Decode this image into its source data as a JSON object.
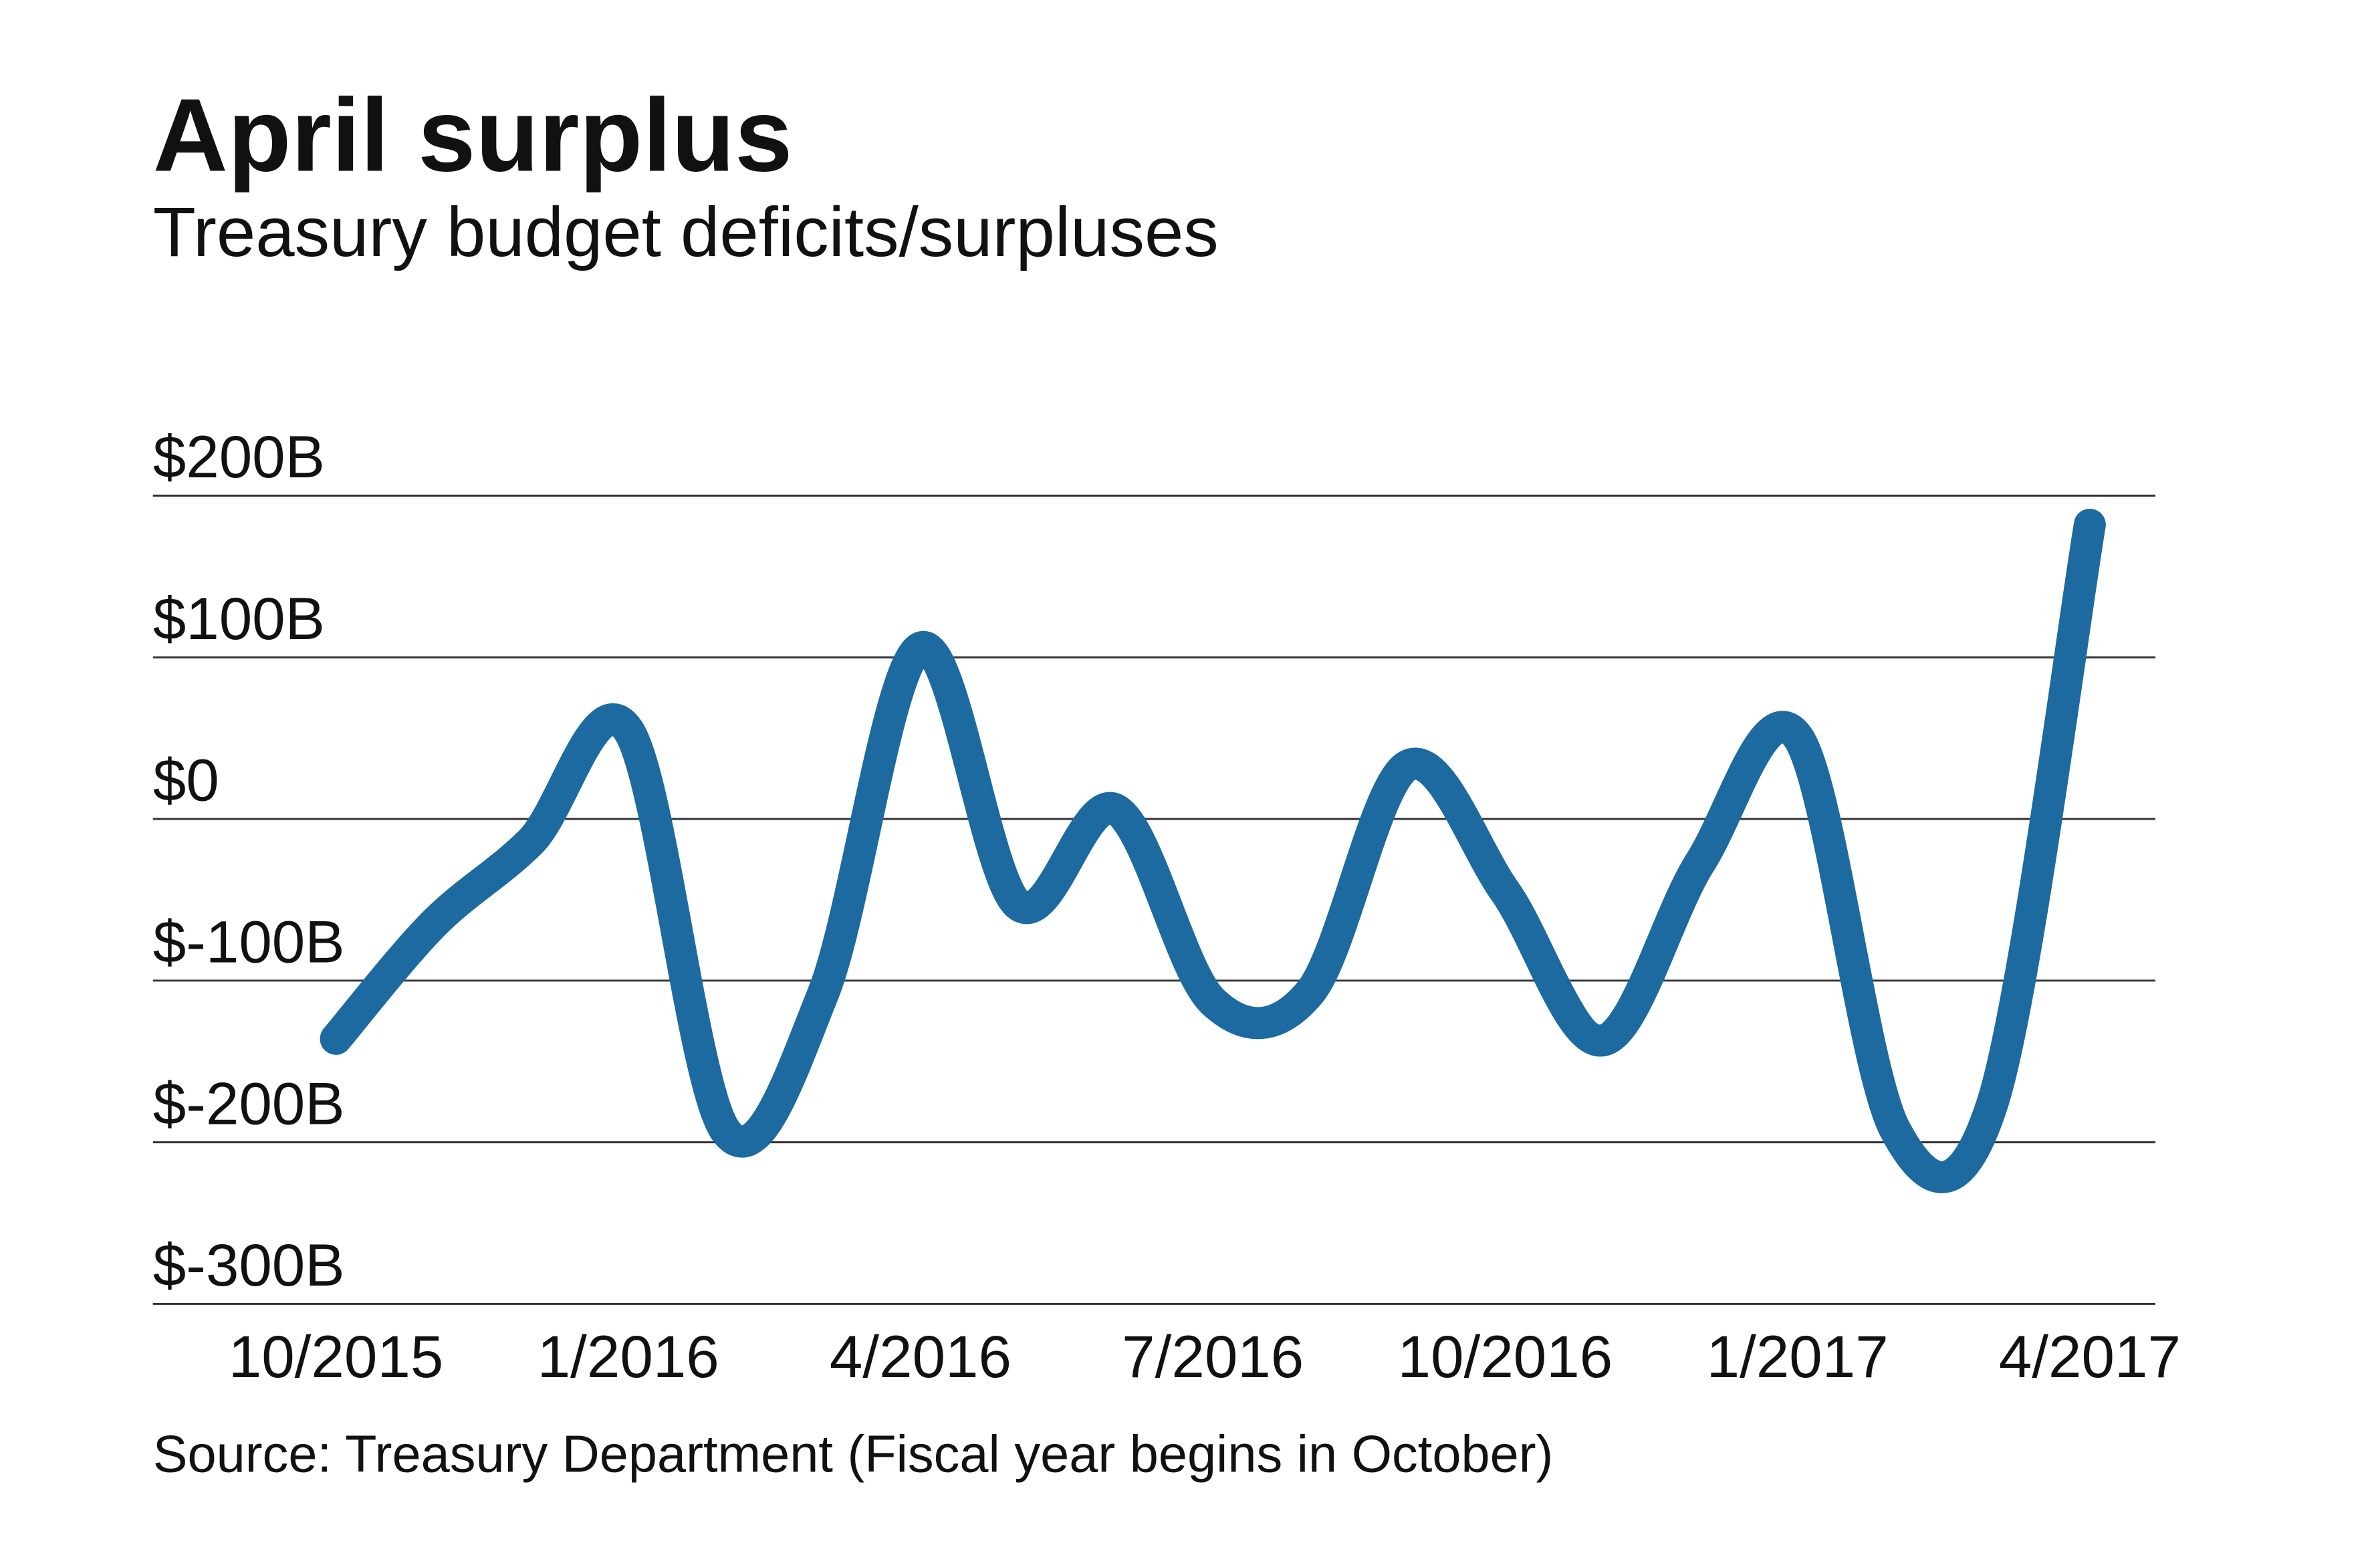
{
  "chart_data": {
    "type": "line",
    "title": "April surplus",
    "subtitle": "Treasury budget deficits/surpluses",
    "source": "Source: Treasury Department (Fiscal year begins in October)",
    "x": [
      "10/2015",
      "11/2015",
      "12/2015",
      "1/2016",
      "2/2016",
      "3/2016",
      "4/2016",
      "5/2016",
      "6/2016",
      "7/2016",
      "8/2016",
      "9/2016",
      "10/2016",
      "11/2016",
      "12/2016",
      "1/2017",
      "2/2017",
      "3/2017",
      "4/2017"
    ],
    "series": [
      {
        "values": [
          -136,
          -65,
          -14,
          55,
          -193,
          -108,
          106,
          -53,
          6,
          -113,
          -107,
          33,
          -45,
          -137,
          -27,
          51,
          -192,
          -176,
          182
        ]
      }
    ],
    "x_tick_labels": [
      "10/2015",
      "1/2016",
      "4/2016",
      "7/2016",
      "10/2016",
      "1/2017",
      "4/2017"
    ],
    "y_ticks": [
      200,
      100,
      0,
      -100,
      -200,
      -300
    ],
    "y_tick_labels": [
      "$200B",
      "$100B",
      "$0",
      "$-100B",
      "$-200B",
      "$-300B"
    ],
    "ylim": [
      -300,
      200
    ],
    "grid": "horizontal",
    "line_color": "#1c6aa0",
    "grid_color": "#333333"
  }
}
